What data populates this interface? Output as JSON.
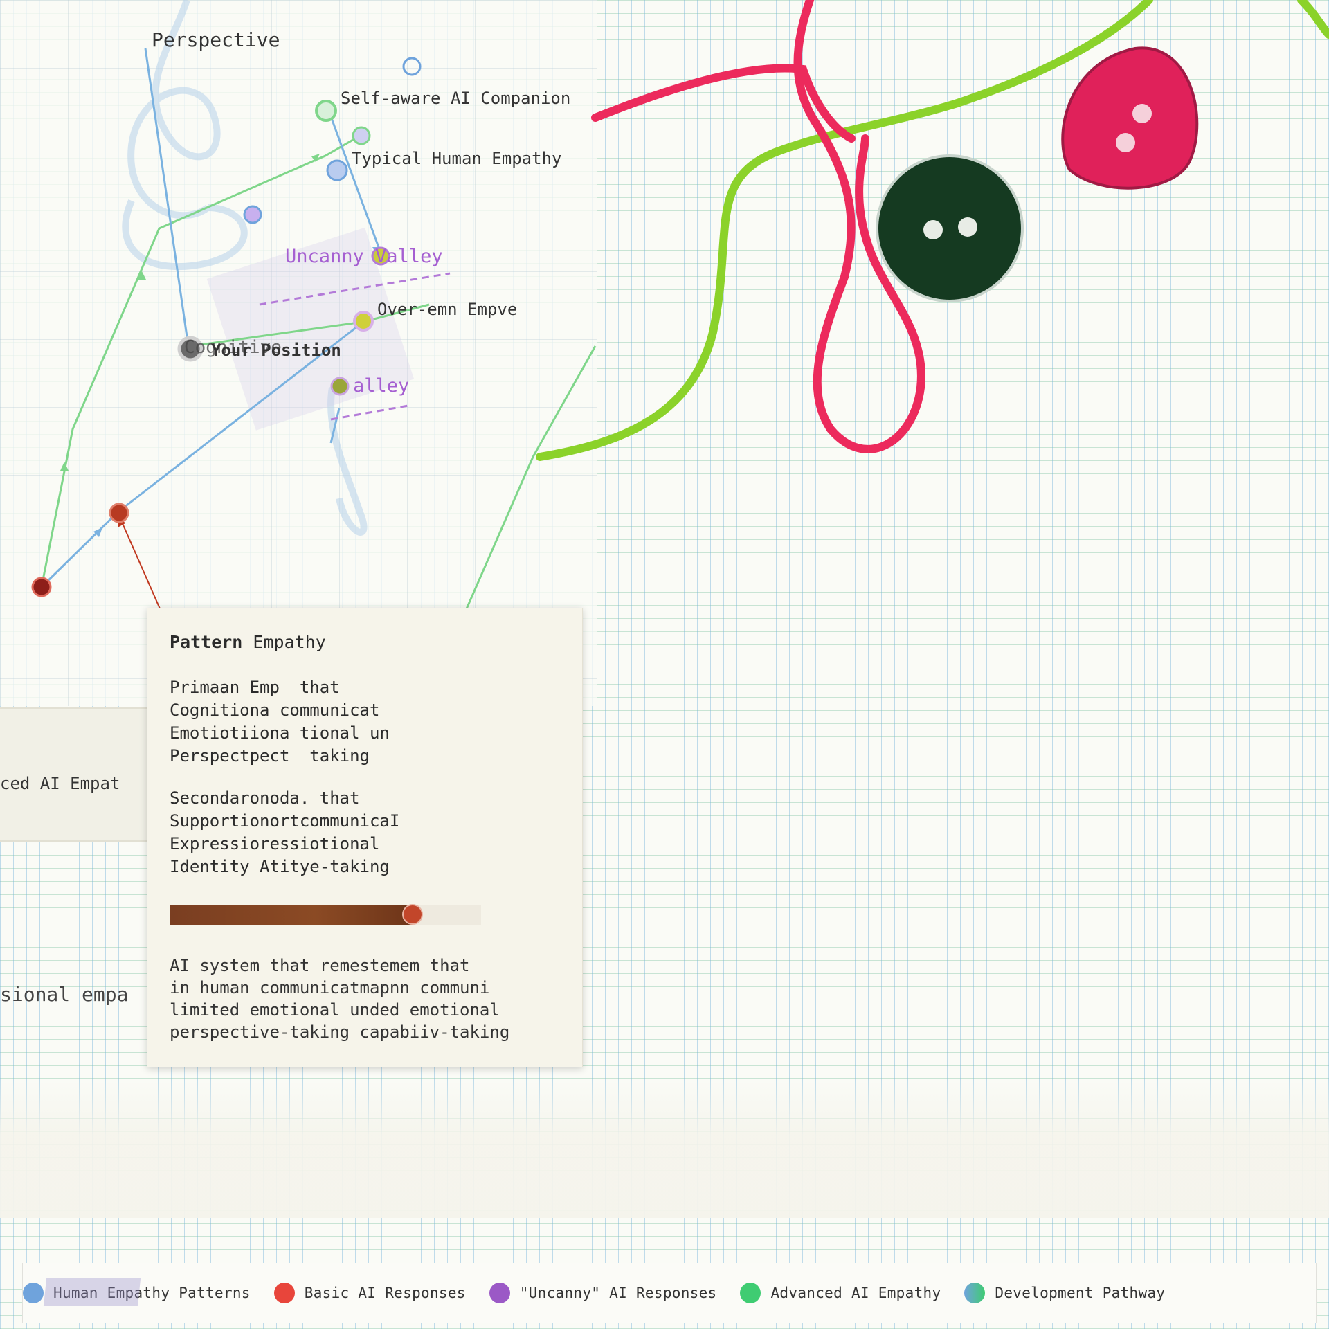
{
  "chart": {
    "axis_label": "Perspective",
    "points": {
      "self_aware": "Self-aware AI Companion",
      "typical_human": "Typical Human Empathy",
      "uncanny_valley": "Uncanny Valley",
      "over_empathy": "Over-emn Empve",
      "cognitive": "Cognitive",
      "your_position": "Your Position",
      "valley": "alley"
    }
  },
  "tooltip": {
    "title_bold": "Pattern",
    "title_rest": " Empathy",
    "primary": "Primaan Emp  that\nCognitiona communicat\nEmotiotiiona tional un\nPerspectpect  taking",
    "primary_heading": "Primaan",
    "secondary": "Secondaronoda. that\nSupportionortcommunicaI\nExpressioressiotional\nIdentity Atitye-taking",
    "level": 0.78,
    "description": "AI system that remestemem that\nin human communicatmapnn communi\nlimited emotional unded emotional\nperspective-taking capabiiv-taking"
  },
  "side": {
    "advanced_label": "ced AI Empat",
    "professional_label": "sional empa"
  },
  "legend": {
    "items": [
      {
        "label": "Human Empathy Patterns",
        "color": "#6fa3dc"
      },
      {
        "label": "Basic AI Responses",
        "color": "#e8453b"
      },
      {
        "label": "\"Uncanny\" AI Responses",
        "color": "#9b59c6"
      },
      {
        "label": "Advanced AI Empathy",
        "color": "#3fcc72"
      },
      {
        "label": "Development Pathway",
        "color": "#2aa9c9"
      }
    ]
  },
  "colors": {
    "human": "#6fa3dc",
    "basic": "#b73a22",
    "uncanny": "#a55fd1",
    "advanced": "#7fd68a",
    "thread_red": "#ec2a5c",
    "thread_green": "#8bd22a"
  }
}
